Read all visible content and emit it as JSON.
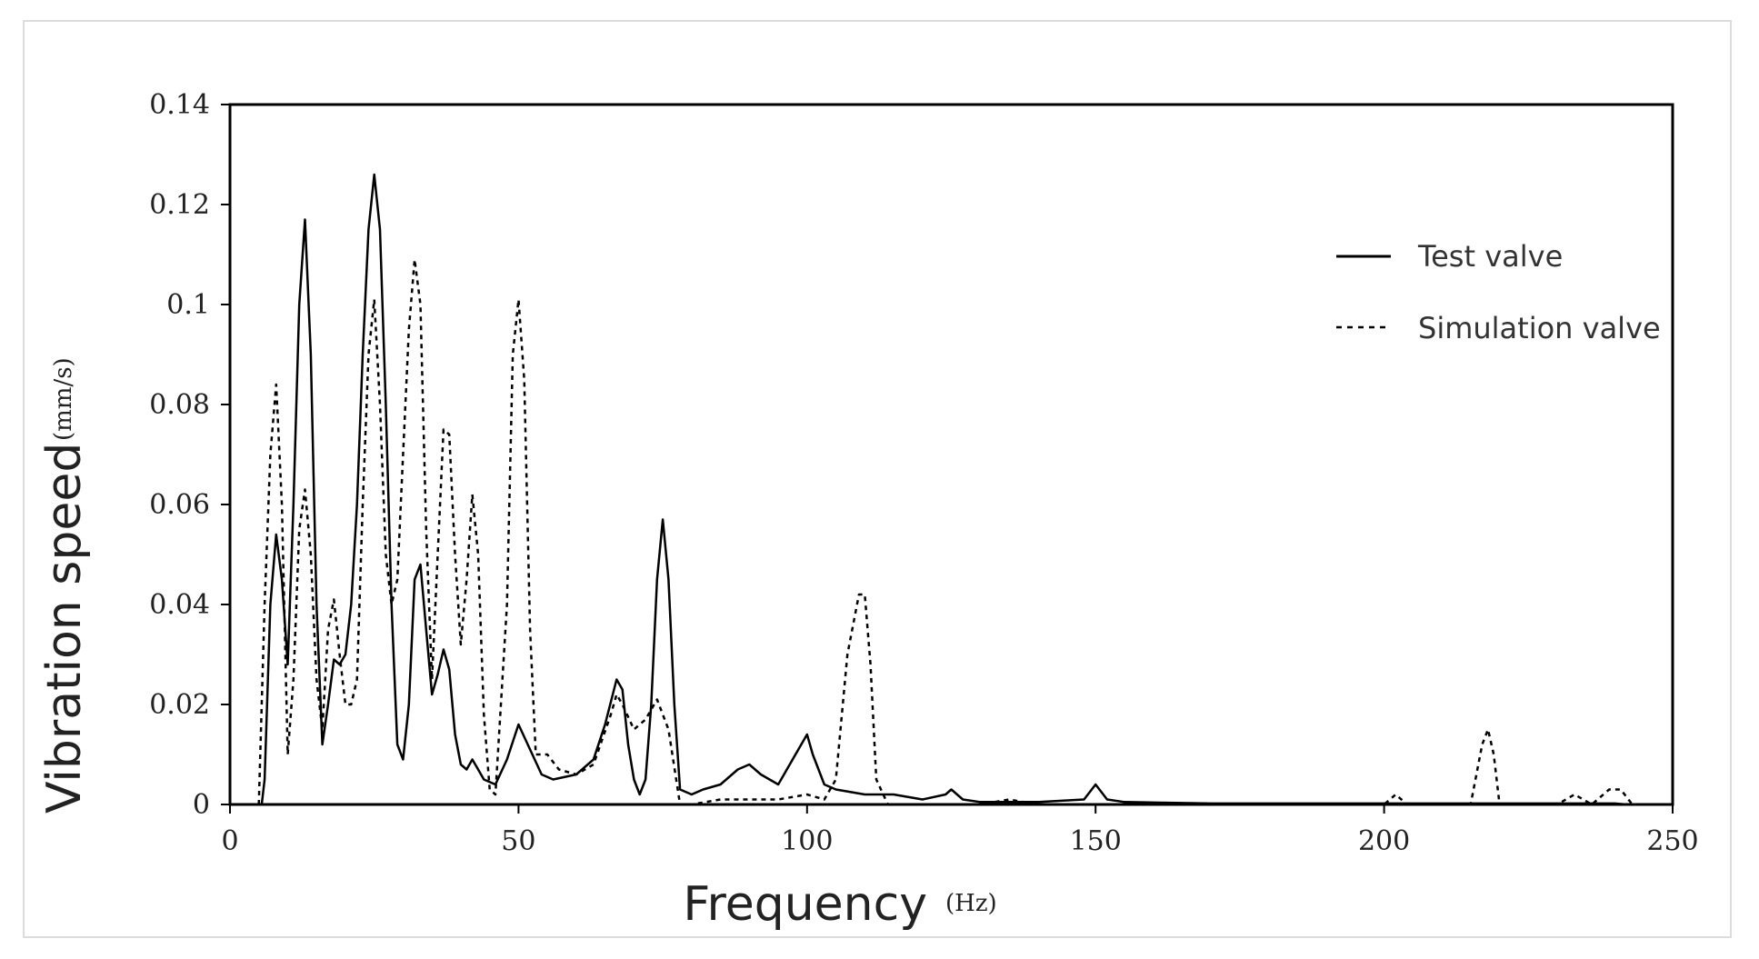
{
  "chart_data": {
    "type": "line",
    "xlabel": "Frequency",
    "xunit": "(Hz)",
    "ylabel": "Vibration speed",
    "yunit": "(mm/s)",
    "xlim": [
      0,
      250
    ],
    "ylim": [
      0,
      0.14
    ],
    "xticks": [
      "0",
      "50",
      "100",
      "150",
      "200",
      "250"
    ],
    "yticks": [
      "0",
      "0.02",
      "0.04",
      "0.06",
      "0.08",
      "0.1",
      "0.12",
      "0.14"
    ],
    "grid": false,
    "legend": "top-right",
    "series": [
      {
        "name": "Test valve",
        "style": "solid",
        "color": "#000000",
        "points": [
          [
            5.5,
            0.0
          ],
          [
            6,
            0.005
          ],
          [
            7,
            0.04
          ],
          [
            8,
            0.054
          ],
          [
            9,
            0.045
          ],
          [
            10,
            0.028
          ],
          [
            11,
            0.06
          ],
          [
            12,
            0.1
          ],
          [
            13,
            0.117
          ],
          [
            14,
            0.09
          ],
          [
            15,
            0.04
          ],
          [
            16,
            0.012
          ],
          [
            17,
            0.02
          ],
          [
            18,
            0.029
          ],
          [
            19,
            0.028
          ],
          [
            20,
            0.03
          ],
          [
            21,
            0.04
          ],
          [
            22,
            0.06
          ],
          [
            23,
            0.09
          ],
          [
            24,
            0.115
          ],
          [
            25,
            0.126
          ],
          [
            26,
            0.115
          ],
          [
            27,
            0.08
          ],
          [
            28,
            0.04
          ],
          [
            29,
            0.012
          ],
          [
            30,
            0.009
          ],
          [
            31,
            0.02
          ],
          [
            32,
            0.045
          ],
          [
            33,
            0.048
          ],
          [
            34,
            0.035
          ],
          [
            35,
            0.022
          ],
          [
            36,
            0.026
          ],
          [
            37,
            0.031
          ],
          [
            38,
            0.027
          ],
          [
            39,
            0.014
          ],
          [
            40,
            0.008
          ],
          [
            41,
            0.007
          ],
          [
            42,
            0.009
          ],
          [
            43,
            0.007
          ],
          [
            44,
            0.005
          ],
          [
            46,
            0.004
          ],
          [
            48,
            0.009
          ],
          [
            50,
            0.016
          ],
          [
            52,
            0.011
          ],
          [
            54,
            0.006
          ],
          [
            56,
            0.005
          ],
          [
            60,
            0.006
          ],
          [
            63,
            0.009
          ],
          [
            65,
            0.016
          ],
          [
            67,
            0.025
          ],
          [
            68,
            0.023
          ],
          [
            69,
            0.012
          ],
          [
            70,
            0.005
          ],
          [
            71,
            0.002
          ],
          [
            72,
            0.005
          ],
          [
            73,
            0.02
          ],
          [
            74,
            0.045
          ],
          [
            75,
            0.057
          ],
          [
            76,
            0.045
          ],
          [
            77,
            0.02
          ],
          [
            78,
            0.003
          ],
          [
            80,
            0.002
          ],
          [
            82,
            0.003
          ],
          [
            85,
            0.004
          ],
          [
            88,
            0.007
          ],
          [
            90,
            0.008
          ],
          [
            92,
            0.006
          ],
          [
            95,
            0.004
          ],
          [
            98,
            0.01
          ],
          [
            100,
            0.014
          ],
          [
            101,
            0.01
          ],
          [
            103,
            0.004
          ],
          [
            105,
            0.003
          ],
          [
            110,
            0.002
          ],
          [
            115,
            0.002
          ],
          [
            120,
            0.001
          ],
          [
            124,
            0.002
          ],
          [
            125,
            0.003
          ],
          [
            127,
            0.001
          ],
          [
            130,
            0.0005
          ],
          [
            140,
            0.0005
          ],
          [
            148,
            0.001
          ],
          [
            150,
            0.004
          ],
          [
            152,
            0.001
          ],
          [
            155,
            0.0005
          ],
          [
            170,
            0.0002
          ],
          [
            200,
            0.0002
          ],
          [
            240,
            0.0002
          ],
          [
            242,
            0.0
          ]
        ]
      },
      {
        "name": "Simulation valve",
        "style": "dashed",
        "color": "#000000",
        "points": [
          [
            5,
            0.0
          ],
          [
            6,
            0.04
          ],
          [
            7,
            0.07
          ],
          [
            8,
            0.084
          ],
          [
            9,
            0.06
          ],
          [
            10,
            0.01
          ],
          [
            11,
            0.025
          ],
          [
            12,
            0.055
          ],
          [
            13,
            0.063
          ],
          [
            14,
            0.05
          ],
          [
            15,
            0.025
          ],
          [
            16,
            0.015
          ],
          [
            17,
            0.035
          ],
          [
            18,
            0.041
          ],
          [
            19,
            0.03
          ],
          [
            20,
            0.02
          ],
          [
            21,
            0.02
          ],
          [
            22,
            0.025
          ],
          [
            23,
            0.06
          ],
          [
            24,
            0.09
          ],
          [
            25,
            0.101
          ],
          [
            26,
            0.08
          ],
          [
            27,
            0.05
          ],
          [
            28,
            0.04
          ],
          [
            29,
            0.045
          ],
          [
            30,
            0.07
          ],
          [
            31,
            0.095
          ],
          [
            32,
            0.109
          ],
          [
            33,
            0.1
          ],
          [
            34,
            0.055
          ],
          [
            35,
            0.025
          ],
          [
            36,
            0.05
          ],
          [
            37,
            0.075
          ],
          [
            38,
            0.074
          ],
          [
            39,
            0.05
          ],
          [
            40,
            0.032
          ],
          [
            41,
            0.045
          ],
          [
            42,
            0.062
          ],
          [
            43,
            0.05
          ],
          [
            44,
            0.018
          ],
          [
            45,
            0.003
          ],
          [
            46,
            0.002
          ],
          [
            48,
            0.04
          ],
          [
            49,
            0.09
          ],
          [
            50,
            0.101
          ],
          [
            51,
            0.085
          ],
          [
            52,
            0.035
          ],
          [
            53,
            0.01
          ],
          [
            55,
            0.01
          ],
          [
            57,
            0.007
          ],
          [
            60,
            0.006
          ],
          [
            63,
            0.008
          ],
          [
            66,
            0.018
          ],
          [
            67,
            0.022
          ],
          [
            68,
            0.02
          ],
          [
            70,
            0.015
          ],
          [
            72,
            0.017
          ],
          [
            74,
            0.021
          ],
          [
            76,
            0.015
          ],
          [
            78,
            0.0
          ],
          [
            80,
            0.0
          ],
          [
            85,
            0.001
          ],
          [
            90,
            0.001
          ],
          [
            95,
            0.001
          ],
          [
            100,
            0.002
          ],
          [
            103,
            0.001
          ],
          [
            105,
            0.005
          ],
          [
            107,
            0.03
          ],
          [
            109,
            0.042
          ],
          [
            110,
            0.042
          ],
          [
            111,
            0.028
          ],
          [
            112,
            0.005
          ],
          [
            114,
            0.0
          ],
          [
            120,
            0.0
          ],
          [
            130,
            0.0
          ],
          [
            135,
            0.001
          ],
          [
            140,
            0.0
          ],
          [
            160,
            0.0
          ],
          [
            200,
            0.0
          ],
          [
            202,
            0.002
          ],
          [
            204,
            0.0
          ],
          [
            215,
            0.0
          ],
          [
            217,
            0.012
          ],
          [
            218,
            0.015
          ],
          [
            219,
            0.01
          ],
          [
            220,
            0.0
          ],
          [
            230,
            0.0
          ],
          [
            233,
            0.002
          ],
          [
            236,
            0.0
          ],
          [
            239,
            0.003
          ],
          [
            241,
            0.003
          ],
          [
            243,
            0.0
          ]
        ]
      }
    ]
  }
}
